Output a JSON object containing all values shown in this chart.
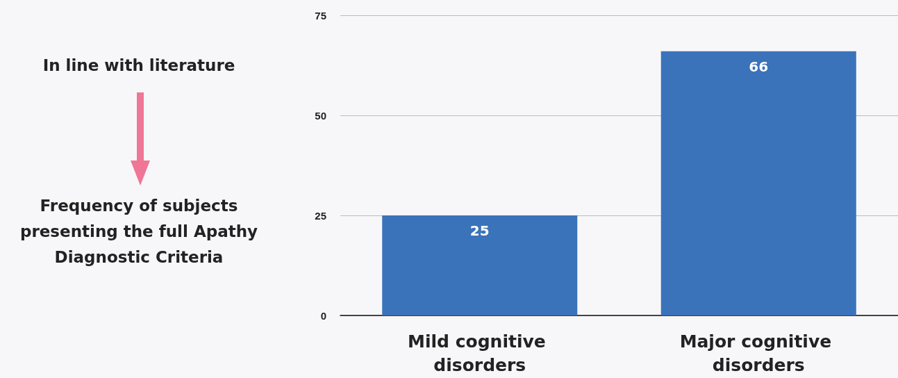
{
  "chart_data": {
    "type": "bar",
    "categories": [
      "Mild cognitive disorders",
      "Major cognitive disorders"
    ],
    "values": [
      25,
      66
    ],
    "color": "#3a73b9",
    "ylim": [
      0,
      75
    ],
    "yticks": [
      0,
      25,
      50,
      75
    ],
    "grid": "y",
    "data_labels": true,
    "annotations": [
      "In line with literature",
      "Frequency of subjects presenting the full Apathy Diagnostic Criteria"
    ]
  }
}
